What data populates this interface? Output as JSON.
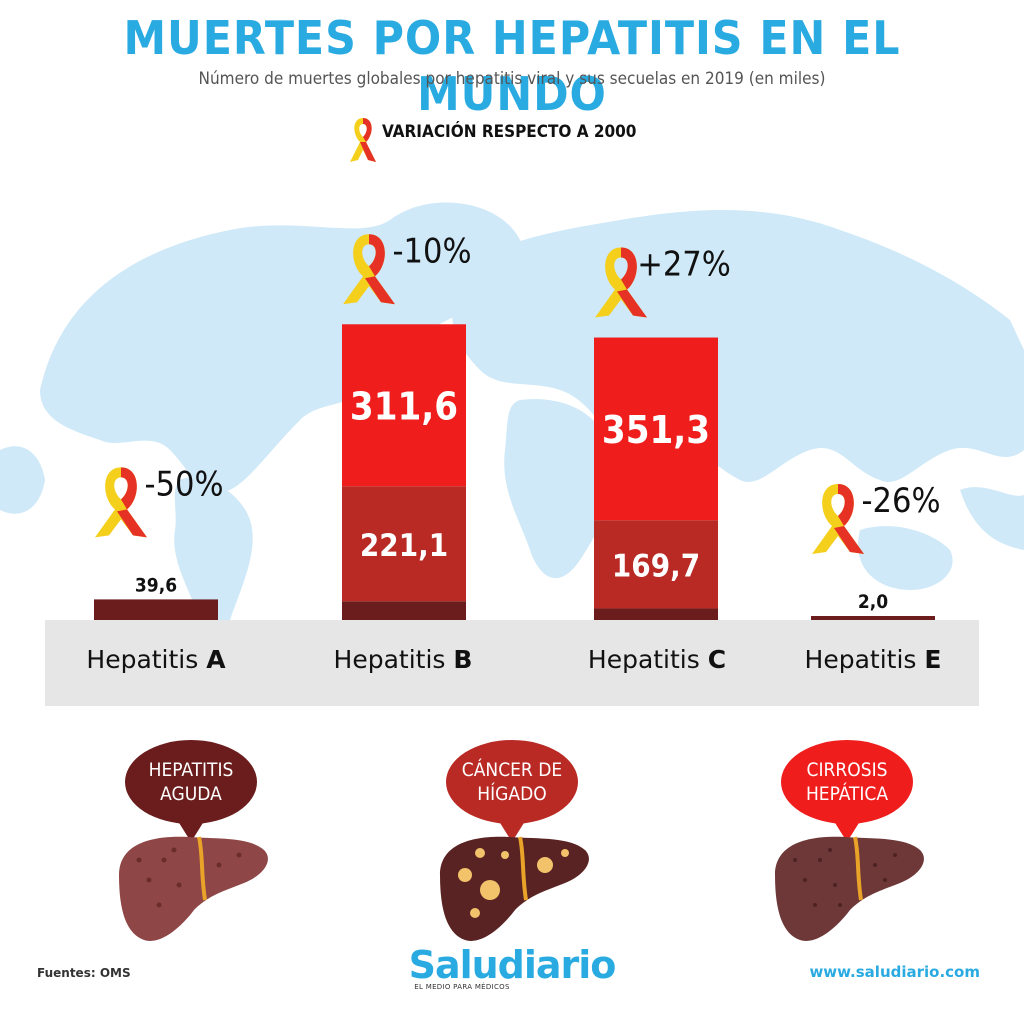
{
  "header": {
    "title": "MUERTES POR HEPATITIS EN EL MUNDO",
    "subtitle": "Número de muertes globales por hepatitis viral y sus secuelas en 2019 (en miles)"
  },
  "legend": {
    "label": "VARIACIÓN RESPECTO A 2000"
  },
  "colors": {
    "acute": "#6b1d1d",
    "cancer": "#b92a25",
    "cirrhosis": "#f01d1d",
    "brand": "#29abe2",
    "ribbon_yellow": "#f4cf1c",
    "ribbon_red": "#e53225"
  },
  "chart_data": {
    "type": "bar",
    "stacked": true,
    "categories": [
      "Hepatitis A",
      "Hepatitis B",
      "Hepatitis C",
      "Hepatitis E"
    ],
    "series": [
      {
        "name": "HEPATITIS AGUDA",
        "values": [
          39.6,
          36.0,
          22.2,
          2.0
        ],
        "labels": [
          "39,6",
          "36,0",
          "22,2",
          "2,0"
        ],
        "color": "#6b1d1d"
      },
      {
        "name": "CÁNCER DE HÍGADO",
        "values": [
          0,
          221.1,
          169.7,
          0
        ],
        "labels": [
          "",
          "221,1",
          "169,7",
          ""
        ],
        "color": "#b92a25"
      },
      {
        "name": "CIRROSIS HEPÁTICA",
        "values": [
          0,
          311.6,
          351.3,
          0
        ],
        "labels": [
          "",
          "311,6",
          "351,3",
          ""
        ],
        "color": "#f01d1d"
      }
    ],
    "variation_vs_2000": [
      "-50%",
      "-10%",
      "+27%",
      "-26%"
    ],
    "ylim": [
      0,
      600
    ],
    "grid": false
  },
  "categories": [
    {
      "prefix": "Hepatitis ",
      "letter": "A"
    },
    {
      "prefix": "Hepatitis ",
      "letter": "B"
    },
    {
      "prefix": "Hepatitis ",
      "letter": "C"
    },
    {
      "prefix": "Hepatitis ",
      "letter": "E"
    }
  ],
  "outcomes": [
    {
      "line1": "HEPATITIS",
      "line2": "AGUDA",
      "icon": "liver-icon"
    },
    {
      "line1": "CÁNCER DE",
      "line2": "HÍGADO",
      "icon": "liver-tumor-icon"
    },
    {
      "line1": "CIRROSIS",
      "line2": "HEPÁTICA",
      "icon": "liver-cirrhosis-icon"
    }
  ],
  "footer": {
    "sources": "Fuentes: OMS",
    "brand": "Saludiario",
    "tagline": "EL MEDIO PARA MÉDICOS",
    "url": "www.saludiario.com"
  }
}
